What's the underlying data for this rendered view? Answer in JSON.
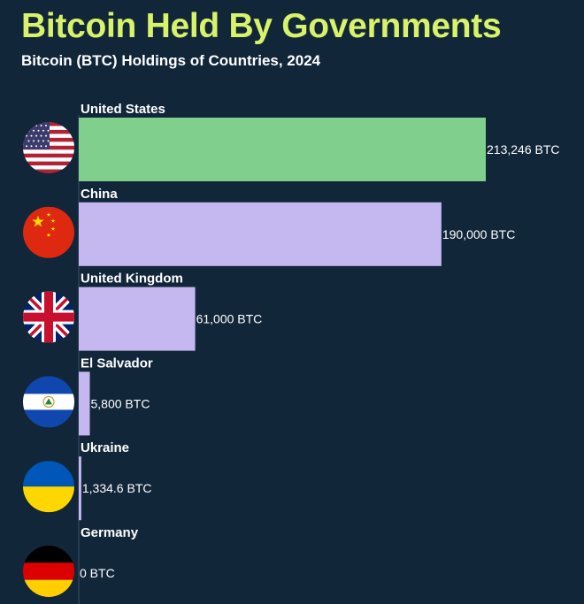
{
  "title": "Bitcoin Held By Governments",
  "subtitle": "Bitcoin (BTC) Holdings of Countries, 2024",
  "colors": {
    "background": "#12263a",
    "title": "#d8f26a",
    "highlight_bar": "#80cf8c",
    "bar": "#c5b8f0",
    "axis": "#3a5066"
  },
  "chart_data": {
    "type": "bar",
    "orientation": "horizontal",
    "title": "Bitcoin Held By Governments",
    "subtitle": "Bitcoin (BTC) Holdings of Countries, 2024",
    "categories": [
      "United States",
      "China",
      "United Kingdom",
      "El Salvador",
      "Ukraine",
      "Germany"
    ],
    "values": [
      213246,
      190000,
      61000,
      5800,
      1334.6,
      0
    ],
    "value_labels": [
      "213,246 BTC",
      "190,000 BTC",
      "61,000 BTC",
      "5,800 BTC",
      "1,334.6 BTC",
      "0 BTC"
    ],
    "flags": [
      "us-flag-icon",
      "china-flag-icon",
      "uk-flag-icon",
      "el-salvador-flag-icon",
      "ukraine-flag-icon",
      "germany-flag-icon"
    ],
    "highlight_index": 0,
    "xlim": [
      0,
      213246
    ],
    "grid": false,
    "legend": "none"
  }
}
